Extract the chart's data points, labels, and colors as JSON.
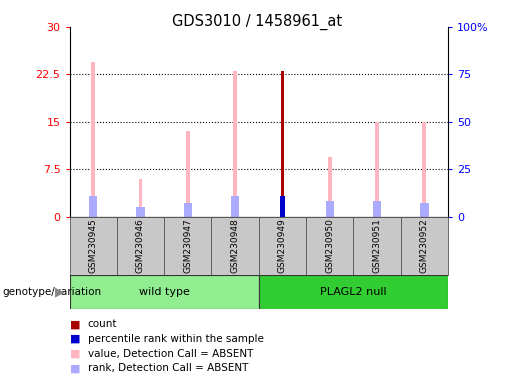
{
  "title": "GDS3010 / 1458961_at",
  "samples": [
    "GSM230945",
    "GSM230946",
    "GSM230947",
    "GSM230948",
    "GSM230949",
    "GSM230950",
    "GSM230951",
    "GSM230952"
  ],
  "value_absent": [
    24.5,
    6.0,
    13.5,
    23.0,
    null,
    9.5,
    15.0,
    15.0
  ],
  "rank_absent": [
    11.0,
    5.5,
    7.5,
    11.0,
    null,
    8.5,
    8.5,
    7.5
  ],
  "count": [
    null,
    null,
    null,
    null,
    23.0,
    null,
    null,
    null
  ],
  "count_rank": [
    null,
    null,
    null,
    null,
    11.0,
    null,
    null,
    null
  ],
  "ylim_left": [
    0,
    30
  ],
  "ylim_right": [
    0,
    100
  ],
  "yticks_left": [
    0,
    7.5,
    15,
    22.5,
    30
  ],
  "yticks_right": [
    0,
    25,
    50,
    75,
    100
  ],
  "ytick_labels_left": [
    "0",
    "7.5",
    "15",
    "22.5",
    "30"
  ],
  "ytick_labels_right": [
    "0",
    "25",
    "50",
    "75",
    "100%"
  ],
  "group_wt_color": "#90EE90",
  "group_pl_color": "#32CD32",
  "thin_bar_width": 0.08,
  "rank_bar_width": 0.18,
  "color_value_absent": "#FFB6C1",
  "color_rank_absent": "#AAAAFF",
  "color_count": "#AA0000",
  "color_count_rank": "#0000CC",
  "bg_sample": "#C8C8C8",
  "legend_items": [
    {
      "color": "#AA0000",
      "label": "count"
    },
    {
      "color": "#0000CC",
      "label": "percentile rank within the sample"
    },
    {
      "color": "#FFB6C1",
      "label": "value, Detection Call = ABSENT"
    },
    {
      "color": "#AAAAFF",
      "label": "rank, Detection Call = ABSENT"
    }
  ]
}
